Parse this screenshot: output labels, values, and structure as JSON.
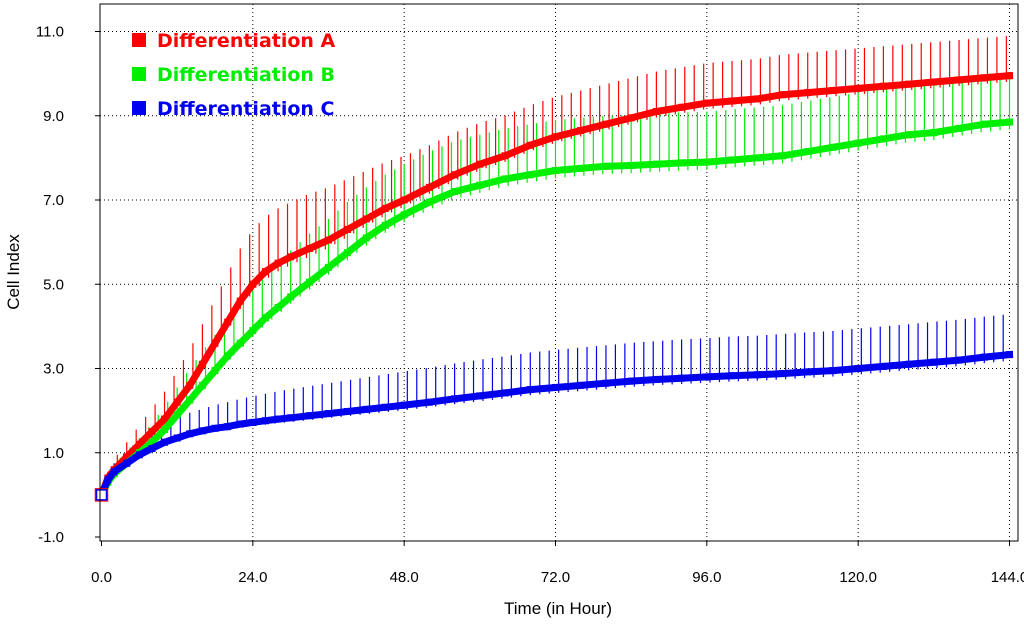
{
  "chart_data": {
    "type": "line",
    "title": "",
    "xlabel": "Time (in Hour)",
    "ylabel": "Cell Index",
    "xlim": [
      0,
      145
    ],
    "ylim": [
      -1,
      11.3
    ],
    "x_ticks": [
      "0.0",
      "24.0",
      "48.0",
      "72.0",
      "96.0",
      "120.0",
      "144.0"
    ],
    "y_ticks": [
      "-1.0",
      "1.0",
      "3.0",
      "5.0",
      "7.0",
      "9.0",
      "11.0"
    ],
    "x_tick_values": [
      0,
      24,
      48,
      72,
      96,
      120,
      144
    ],
    "y_tick_values": [
      -1,
      1,
      3,
      5,
      7,
      9,
      11
    ],
    "grid": true,
    "legend_position": "top-left",
    "series": [
      {
        "name": "Differentiation A",
        "color": "#ff0000",
        "x": [
          0,
          1,
          2,
          4,
          6,
          8,
          10,
          12,
          14,
          16,
          18,
          20,
          22,
          24,
          26,
          28,
          30,
          33,
          36,
          39,
          42,
          45,
          48,
          52,
          56,
          60,
          64,
          68,
          72,
          76,
          80,
          84,
          88,
          92,
          96,
          100,
          104,
          108,
          112,
          116,
          120,
          124,
          128,
          132,
          136,
          140,
          144
        ],
        "values": [
          0,
          0.4,
          0.6,
          0.9,
          1.2,
          1.5,
          1.8,
          2.2,
          2.6,
          3.1,
          3.6,
          4.1,
          4.6,
          5.0,
          5.3,
          5.5,
          5.65,
          5.85,
          6.05,
          6.3,
          6.55,
          6.8,
          7.0,
          7.3,
          7.6,
          7.85,
          8.05,
          8.3,
          8.5,
          8.65,
          8.8,
          8.95,
          9.1,
          9.2,
          9.3,
          9.35,
          9.4,
          9.5,
          9.55,
          9.6,
          9.65,
          9.7,
          9.75,
          9.8,
          9.85,
          9.9,
          9.95
        ],
        "errors": [
          0,
          0.15,
          0.25,
          0.35,
          0.45,
          0.55,
          0.65,
          0.75,
          0.85,
          0.95,
          1.05,
          1.15,
          1.25,
          1.3,
          1.3,
          1.3,
          1.3,
          1.3,
          1.25,
          1.2,
          1.15,
          1.1,
          1.05,
          1.0,
          1.0,
          0.98,
          0.96,
          0.95,
          0.95,
          0.95,
          0.95,
          0.95,
          0.95,
          0.95,
          0.95,
          0.95,
          0.95,
          0.95,
          0.95,
          0.95,
          0.95,
          0.95,
          0.95,
          0.95,
          0.95,
          0.95,
          0.95
        ]
      },
      {
        "name": "Differentiation B",
        "color": "#00ee00",
        "x": [
          0,
          1,
          2,
          4,
          6,
          8,
          10,
          12,
          14,
          16,
          18,
          20,
          22,
          24,
          26,
          28,
          30,
          33,
          36,
          39,
          42,
          45,
          48,
          52,
          56,
          60,
          64,
          68,
          72,
          76,
          80,
          84,
          88,
          92,
          96,
          100,
          104,
          108,
          112,
          116,
          120,
          124,
          128,
          132,
          136,
          140,
          144
        ],
        "values": [
          0,
          0.3,
          0.5,
          0.75,
          1.0,
          1.25,
          1.55,
          1.9,
          2.25,
          2.6,
          2.95,
          3.3,
          3.6,
          3.9,
          4.2,
          4.45,
          4.7,
          5.05,
          5.4,
          5.75,
          6.1,
          6.4,
          6.65,
          6.95,
          7.2,
          7.35,
          7.5,
          7.6,
          7.7,
          7.75,
          7.8,
          7.82,
          7.85,
          7.88,
          7.9,
          7.95,
          8.0,
          8.05,
          8.15,
          8.25,
          8.35,
          8.45,
          8.55,
          8.6,
          8.7,
          8.8,
          8.85
        ],
        "errors": [
          0,
          0.1,
          0.2,
          0.3,
          0.35,
          0.45,
          0.55,
          0.65,
          0.75,
          0.8,
          0.85,
          0.9,
          0.95,
          1.0,
          1.05,
          1.1,
          1.1,
          1.15,
          1.15,
          1.2,
          1.2,
          1.2,
          1.2,
          1.2,
          1.2,
          1.2,
          1.2,
          1.2,
          1.2,
          1.2,
          1.2,
          1.2,
          1.2,
          1.2,
          1.2,
          1.2,
          1.2,
          1.2,
          1.2,
          1.2,
          1.2,
          1.2,
          1.2,
          1.2,
          1.2,
          1.2,
          1.15
        ]
      },
      {
        "name": "Differentiation C",
        "color": "#0000ee",
        "x": [
          0,
          1,
          2,
          4,
          6,
          8,
          10,
          12,
          14,
          16,
          18,
          20,
          22,
          24,
          26,
          28,
          30,
          33,
          36,
          39,
          42,
          45,
          48,
          52,
          56,
          60,
          64,
          68,
          72,
          76,
          80,
          84,
          88,
          92,
          96,
          100,
          104,
          108,
          112,
          116,
          120,
          124,
          128,
          132,
          136,
          140,
          144
        ],
        "values": [
          0,
          0.35,
          0.55,
          0.75,
          0.95,
          1.1,
          1.25,
          1.35,
          1.45,
          1.52,
          1.58,
          1.62,
          1.68,
          1.72,
          1.76,
          1.8,
          1.83,
          1.88,
          1.93,
          1.98,
          2.03,
          2.08,
          2.13,
          2.2,
          2.28,
          2.35,
          2.42,
          2.5,
          2.55,
          2.6,
          2.65,
          2.7,
          2.74,
          2.77,
          2.8,
          2.83,
          2.85,
          2.88,
          2.92,
          2.95,
          3.0,
          3.05,
          3.1,
          3.15,
          3.2,
          3.27,
          3.33
        ],
        "errors": [
          0,
          0.1,
          0.2,
          0.3,
          0.35,
          0.4,
          0.45,
          0.48,
          0.5,
          0.52,
          0.55,
          0.58,
          0.6,
          0.62,
          0.64,
          0.66,
          0.68,
          0.7,
          0.72,
          0.74,
          0.76,
          0.78,
          0.8,
          0.82,
          0.84,
          0.86,
          0.87,
          0.88,
          0.89,
          0.9,
          0.9,
          0.91,
          0.91,
          0.92,
          0.92,
          0.93,
          0.93,
          0.94,
          0.94,
          0.94,
          0.95,
          0.95,
          0.95,
          0.96,
          0.96,
          0.96,
          0.96
        ]
      }
    ]
  }
}
